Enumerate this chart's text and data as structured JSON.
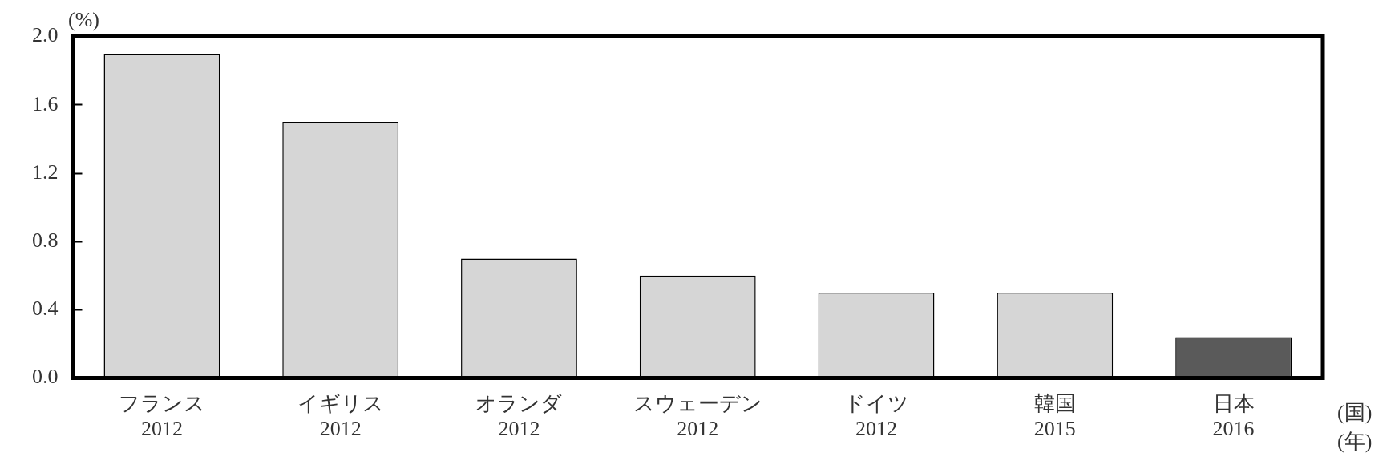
{
  "chart_data": {
    "type": "bar",
    "categories": [
      "フランス\n2012",
      "イギリス\n2012",
      "オランダ\n2012",
      "スウェーデン\n2012",
      "ドイツ\n2012",
      "韓国\n2015",
      "日本\n2016"
    ],
    "values": [
      1.9,
      1.5,
      0.7,
      0.6,
      0.5,
      0.5,
      0.24
    ],
    "colors": [
      "#d6d6d6",
      "#d6d6d6",
      "#d6d6d6",
      "#d6d6d6",
      "#d6d6d6",
      "#d6d6d6",
      "#5a5a5a"
    ],
    "ylabel": "(%)",
    "xlabel": "(国)\n(年)",
    "ylim": [
      0,
      2.0
    ],
    "yticks": [
      {
        "value": 0,
        "label": "0.0"
      },
      {
        "value": 0.4,
        "label": "0.4"
      },
      {
        "value": 0.8,
        "label": "0.8"
      },
      {
        "value": 1.2,
        "label": "1.2"
      },
      {
        "value": 1.6,
        "label": "1.6"
      },
      {
        "value": 2.0,
        "label": "2.0"
      }
    ],
    "grid": false,
    "legend": false
  }
}
